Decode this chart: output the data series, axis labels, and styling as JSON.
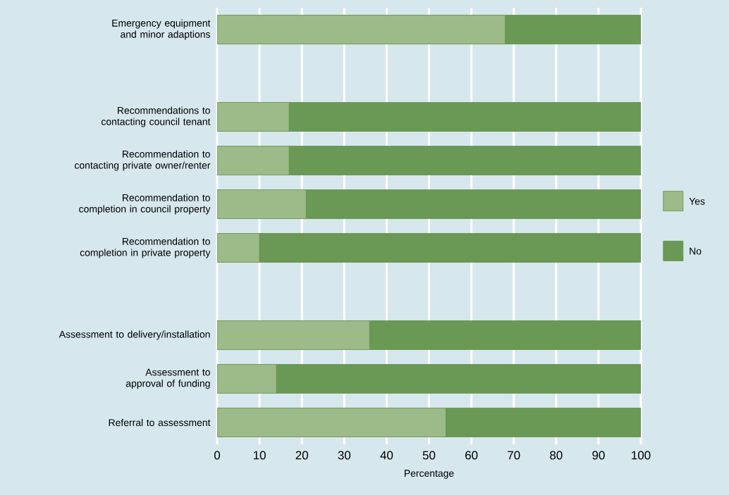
{
  "chart_data": {
    "type": "bar",
    "orientation": "horizontal",
    "stacked": true,
    "xlabel": "Percentage",
    "categories": [
      "Emergency equipment and minor adaptions",
      null,
      "Recommendations to contacting council tenant",
      "Recommendation to contacting private owner/renter",
      "Recommendation to completion in council property",
      "Recommendation to completion in private property",
      null,
      "Assessment to delivery/installation",
      "Assessment to approval of funding",
      "Referral to assessment"
    ],
    "series": [
      {
        "name": "Yes",
        "color": "#9dba89",
        "values": [
          68,
          null,
          17,
          17,
          21,
          10,
          null,
          36,
          14,
          54
        ]
      },
      {
        "name": "No",
        "color": "#6a9955",
        "values": [
          32,
          null,
          83,
          83,
          79,
          90,
          null,
          64,
          86,
          46
        ]
      }
    ],
    "xlim": [
      0,
      100
    ],
    "xticks": [
      0,
      10,
      20,
      30,
      40,
      50,
      60,
      70,
      80,
      90,
      100
    ],
    "grid": "x",
    "legend": "right"
  }
}
